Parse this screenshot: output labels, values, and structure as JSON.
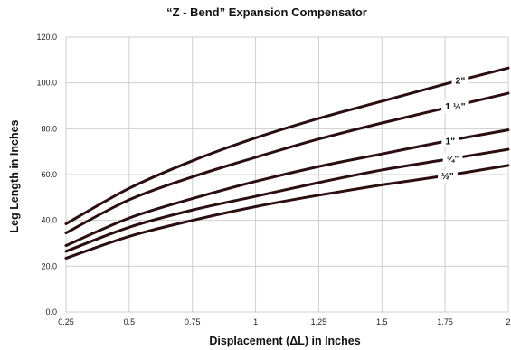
{
  "chart_data": {
    "type": "line",
    "title": "“Z - Bend” Expansion Compensator",
    "xlabel": "Displacement (ΔL) in Inches",
    "ylabel": "Leg Length in Inches",
    "x": [
      0.25,
      0.5,
      0.75,
      1,
      1.25,
      1.5,
      1.75,
      2
    ],
    "x_tick_labels": [
      "0.25",
      "0.5",
      "0.75",
      "1",
      "1.25",
      "1.5",
      "1.75",
      "2"
    ],
    "xlim": [
      0.25,
      2
    ],
    "ylim": [
      0,
      120
    ],
    "y_ticks": [
      0,
      20,
      40,
      60,
      80,
      100,
      120
    ],
    "y_tick_labels": [
      "0.0",
      "20.0",
      "40.0",
      "60.0",
      "80.0",
      "100.0",
      "120.0"
    ],
    "grid": true,
    "legend": "inline labels at right",
    "series": [
      {
        "name": "2\"",
        "values": [
          38.5,
          54,
          66,
          76,
          84.5,
          92,
          99.5,
          106.5
        ]
      },
      {
        "name": "1 ½\"",
        "values": [
          34.5,
          49,
          59,
          67.5,
          75.5,
          82.5,
          89,
          95.5
        ]
      },
      {
        "name": "1\"",
        "values": [
          29,
          41,
          49.5,
          57,
          63.5,
          69,
          74.5,
          79.5
        ]
      },
      {
        "name": "¾\"",
        "values": [
          26.5,
          37,
          44.5,
          50.5,
          56.5,
          62,
          66.5,
          71
        ]
      },
      {
        "name": "½\"",
        "values": [
          23.5,
          33,
          40,
          46,
          51,
          55.5,
          59.5,
          64
        ]
      }
    ],
    "label_x": [
      1.81,
      1.79,
      1.77,
      1.78,
      1.76
    ],
    "line_color": "#2a0e10"
  }
}
